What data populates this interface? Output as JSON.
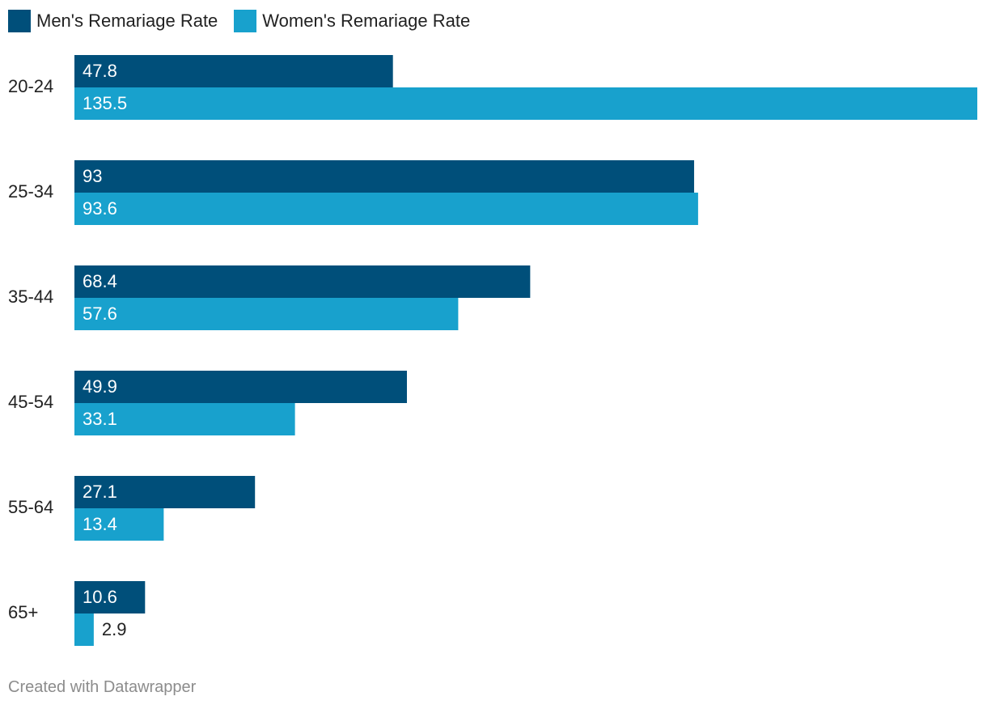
{
  "chart_data": {
    "type": "bar",
    "orientation": "horizontal",
    "categories": [
      "20-24",
      "25-34",
      "35-44",
      "45-54",
      "55-64",
      "65+"
    ],
    "series": [
      {
        "name": "Men's Remariage Rate",
        "color": "#004f7a",
        "values": [
          47.8,
          93,
          68.4,
          49.9,
          27.1,
          10.6
        ],
        "labels": [
          "47.8",
          "93",
          "68.4",
          "49.9",
          "27.1",
          "10.6"
        ]
      },
      {
        "name": "Women's Remariage Rate",
        "color": "#18a1cd",
        "values": [
          135.5,
          93.6,
          57.6,
          33.1,
          13.4,
          2.9
        ],
        "labels": [
          "135.5",
          "93.6",
          "57.6",
          "33.1",
          "13.4",
          "2.9"
        ]
      }
    ],
    "xlim": [
      0,
      135.5
    ],
    "grid": false,
    "legend_position": "top-left",
    "value_labels": "inside-bar"
  },
  "footer": {
    "credit": "Created with Datawrapper"
  }
}
